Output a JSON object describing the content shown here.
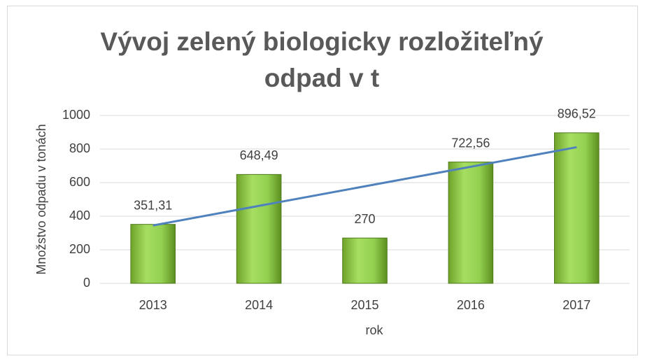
{
  "chart_data": {
    "type": "bar",
    "title": "Vývoj zelený biologicky rozložiteľný odpad v t",
    "xlabel": "rok",
    "ylabel": "Množstvo odpadu v tonách",
    "categories": [
      "2013",
      "2014",
      "2015",
      "2016",
      "2017"
    ],
    "values": [
      351.31,
      648.49,
      270,
      722.56,
      896.52
    ],
    "value_labels": [
      "351,31",
      "648,49",
      "270",
      "722,56",
      "896,52"
    ],
    "color": "#92d050",
    "trendline": true,
    "trendline_color": "#4f81bd",
    "ylim": [
      0,
      1000
    ],
    "yticks": [
      0,
      200,
      400,
      600,
      800,
      1000
    ],
    "grid": true
  }
}
